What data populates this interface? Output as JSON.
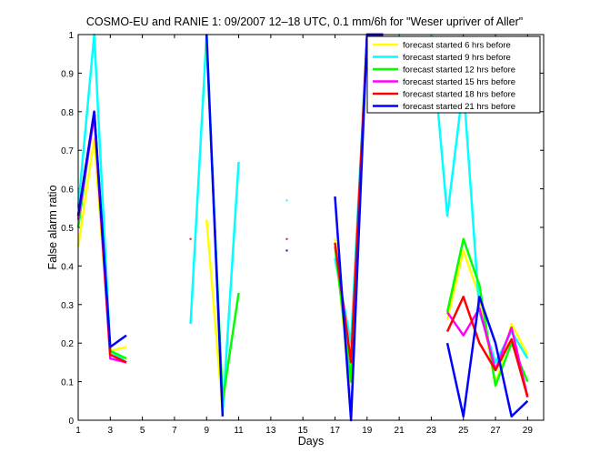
{
  "chart_data": {
    "type": "line",
    "title": "COSMO-EU and RANIE 1: 09/2007 12–18 UTC, 0.1 mm/6h for \"Weser upriver of Aller\"",
    "xlabel": "Days",
    "ylabel": "False alarm ratio",
    "xlim": [
      1,
      30
    ],
    "ylim": [
      0,
      1
    ],
    "x_ticks": [
      1,
      3,
      5,
      7,
      9,
      11,
      13,
      15,
      17,
      19,
      21,
      23,
      25,
      27,
      29
    ],
    "y_ticks": [
      0,
      0.1,
      0.2,
      0.3,
      0.4,
      0.5,
      0.6,
      0.7,
      0.8,
      0.9,
      1
    ],
    "grid": false,
    "legend_position": "top-right",
    "series": [
      {
        "name": "forecast started 6 hrs before",
        "color": "#ffff00",
        "points": [
          [
            1,
            0.45
          ],
          [
            2,
            0.73
          ],
          [
            3,
            0.18
          ],
          [
            4,
            0.19
          ],
          [
            null,
            null
          ],
          [
            9,
            0.52
          ],
          [
            10,
            0.02
          ],
          [
            null,
            null
          ],
          [
            17,
            0.47
          ],
          [
            18,
            0.05
          ],
          [
            null,
            null
          ],
          [
            24,
            0.26
          ],
          [
            25,
            0.44
          ],
          [
            26,
            0.32
          ],
          [
            27,
            0.09
          ],
          [
            28,
            0.25
          ],
          [
            29,
            0.17
          ]
        ]
      },
      {
        "name": "forecast started 9 hrs before",
        "color": "#00ffff",
        "points": [
          [
            1,
            0.55
          ],
          [
            2,
            1.0
          ],
          [
            3,
            0.18
          ],
          [
            4,
            0.15
          ],
          [
            null,
            null
          ],
          [
            8,
            0.25
          ],
          [
            9,
            1.0
          ],
          [
            10,
            0.02
          ],
          [
            11,
            0.67
          ],
          [
            null,
            null
          ],
          [
            14,
            0.57
          ],
          [
            null,
            null
          ],
          [
            17,
            0.42
          ],
          [
            18,
            0.2
          ],
          [
            19,
            1.0
          ],
          [
            20,
            1.0
          ],
          [
            null,
            null
          ],
          [
            21,
            1.0
          ],
          [
            null,
            null
          ],
          [
            23,
            1.0
          ],
          [
            24,
            0.53
          ],
          [
            25,
            0.87
          ],
          [
            26,
            0.28
          ],
          [
            27,
            0.15
          ],
          [
            28,
            0.23
          ],
          [
            29,
            0.16
          ]
        ]
      },
      {
        "name": "forecast started 12 hrs before",
        "color": "#00ff00",
        "points": [
          [
            1,
            0.5
          ],
          [
            2,
            0.8
          ],
          [
            3,
            0.18
          ],
          [
            4,
            0.16
          ],
          [
            null,
            null
          ],
          [
            9,
            0.98
          ],
          [
            10,
            0.05
          ],
          [
            11,
            0.33
          ],
          [
            null,
            null
          ],
          [
            17,
            0.45
          ],
          [
            18,
            0.1
          ],
          [
            19,
            1.0
          ],
          [
            20,
            1.0
          ],
          [
            null,
            null
          ],
          [
            24,
            0.28
          ],
          [
            25,
            0.47
          ],
          [
            26,
            0.35
          ],
          [
            27,
            0.09
          ],
          [
            28,
            0.2
          ],
          [
            29,
            0.1
          ]
        ]
      },
      {
        "name": "forecast started 15 hrs before",
        "color": "#ff00ff",
        "points": [
          [
            1,
            0.52
          ],
          [
            2,
            0.79
          ],
          [
            3,
            0.16
          ],
          [
            4,
            0.15
          ],
          [
            null,
            null
          ],
          [
            24,
            0.28
          ],
          [
            25,
            0.22
          ],
          [
            26,
            0.29
          ],
          [
            27,
            0.13
          ],
          [
            28,
            0.24
          ],
          [
            29,
            0.06
          ]
        ]
      },
      {
        "name": "forecast started 18 hrs before",
        "color": "#ff0000",
        "points": [
          [
            1,
            0.53
          ],
          [
            2,
            0.8
          ],
          [
            3,
            0.17
          ],
          [
            4,
            0.15
          ],
          [
            null,
            null
          ],
          [
            8,
            0.47
          ],
          [
            null,
            null
          ],
          [
            14,
            0.47
          ],
          [
            null,
            null
          ],
          [
            17,
            0.46
          ],
          [
            18,
            0.15
          ],
          [
            19,
            1.0
          ],
          [
            20,
            1.0
          ],
          [
            null,
            null
          ],
          [
            24,
            0.23
          ],
          [
            25,
            0.32
          ],
          [
            26,
            0.2
          ],
          [
            27,
            0.13
          ],
          [
            28,
            0.21
          ],
          [
            29,
            0.06
          ]
        ]
      },
      {
        "name": "forecast started 21 hrs before",
        "color": "#0000ff",
        "points": [
          [
            1,
            0.53
          ],
          [
            2,
            0.8
          ],
          [
            3,
            0.19
          ],
          [
            4,
            0.22
          ],
          [
            null,
            null
          ],
          [
            9,
            1.0
          ],
          [
            10,
            0.01
          ],
          [
            null,
            null
          ],
          [
            14,
            0.44
          ],
          [
            null,
            null
          ],
          [
            17,
            0.58
          ],
          [
            18,
            0.0
          ],
          [
            19,
            1.0
          ],
          [
            20,
            1.0
          ],
          [
            null,
            null
          ],
          [
            24,
            0.2
          ],
          [
            25,
            0.01
          ],
          [
            26,
            0.32
          ],
          [
            27,
            0.2
          ],
          [
            28,
            0.01
          ],
          [
            29,
            0.05
          ]
        ]
      }
    ]
  }
}
